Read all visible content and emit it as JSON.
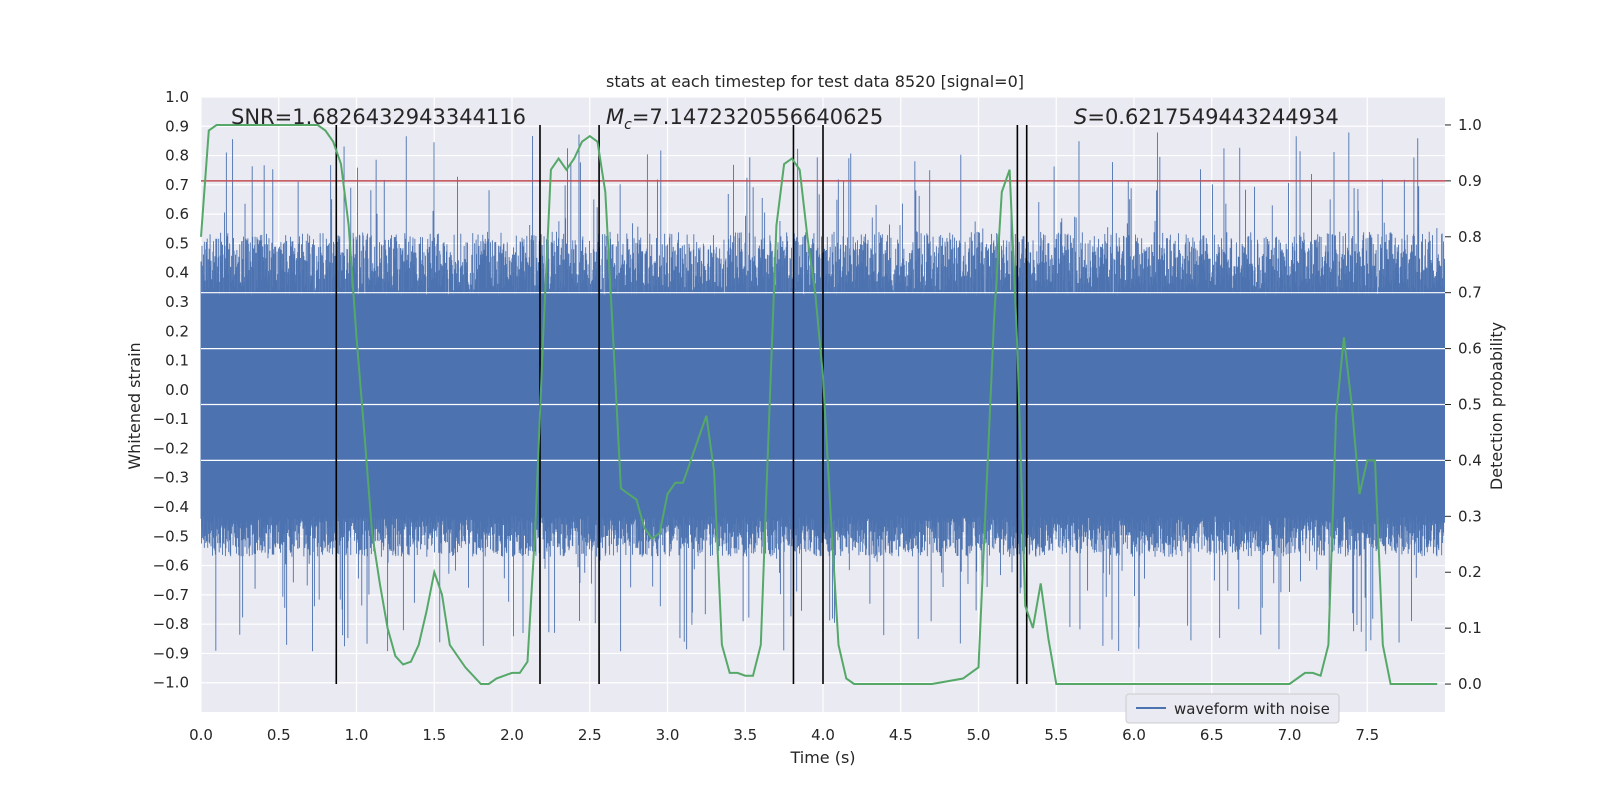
{
  "chart_data": {
    "type": "line",
    "title": "stats at each timestep for test data 8520 [signal=0]",
    "xlabel": "Time (s)",
    "ylabel": "Whitened strain",
    "ylabel_right": "Detection probability",
    "xlim": [
      0.0,
      8.0
    ],
    "ylim": [
      -1.1,
      1.0
    ],
    "ylim_right": [
      -0.05,
      1.05
    ],
    "x_ticks": [
      0.0,
      0.5,
      1.0,
      1.5,
      2.0,
      2.5,
      3.0,
      3.5,
      4.0,
      4.5,
      5.0,
      5.5,
      6.0,
      6.5,
      7.0,
      7.5
    ],
    "x_tick_labels": [
      "0.0",
      "0.5",
      "1.0",
      "1.5",
      "2.0",
      "2.5",
      "3.0",
      "3.5",
      "4.0",
      "4.5",
      "5.0",
      "5.5",
      "6.0",
      "6.5",
      "7.0",
      "7.5"
    ],
    "y_ticks": [
      1.0,
      0.9,
      0.8,
      0.7,
      0.6,
      0.5,
      0.4,
      0.3,
      0.2,
      0.1,
      0.0,
      -0.1,
      -0.2,
      -0.3,
      -0.4,
      -0.5,
      -0.6,
      -0.7,
      -0.8,
      -0.9,
      -1.0
    ],
    "y_tick_labels": [
      "1.0",
      "0.9",
      "0.8",
      "0.7",
      "0.6",
      "0.5",
      "0.4",
      "0.3",
      "0.2",
      "0.1",
      "0.0",
      "−0.1",
      "−0.2",
      "−0.3",
      "−0.4",
      "−0.5",
      "−0.6",
      "−0.7",
      "−0.8",
      "−0.9",
      "−1.0"
    ],
    "y_right_ticks": [
      1.0,
      0.9,
      0.8,
      0.7,
      0.6,
      0.5,
      0.4,
      0.3,
      0.2,
      0.1,
      0.0
    ],
    "y_right_tick_labels": [
      "1.0",
      "0.9",
      "0.8",
      "0.7",
      "0.6",
      "0.5",
      "0.4",
      "0.3",
      "0.2",
      "0.1",
      "0.0"
    ],
    "annotations": {
      "snr": "SNR=1.6826432943344116",
      "mc_symbol": "M",
      "mc_subscript": "c",
      "mc_value": "=7.1472320556640625",
      "s_symbol": "S",
      "s_value": "=0.6217549443244934"
    },
    "legend": {
      "label": "waveform with noise",
      "placement": "lower-right"
    },
    "threshold_line": {
      "value": 0.9,
      "axis": "right",
      "color": "#c44e52"
    },
    "detection_boundaries": [
      0.87,
      2.18,
      2.56,
      3.81,
      4.0,
      5.25,
      5.31
    ],
    "waveform": {
      "name": "waveform with noise",
      "color": "#4c72b0",
      "duration_s": 8.0,
      "core_envelope": [
        -0.43,
        0.32
      ],
      "spike_max": [
        0.88,
        -0.9
      ]
    },
    "detection_probability": {
      "name": "detection probability",
      "color": "#55a868",
      "x": [
        0.0,
        0.05,
        0.1,
        0.15,
        0.2,
        0.3,
        0.4,
        0.5,
        0.6,
        0.7,
        0.75,
        0.8,
        0.85,
        0.9,
        0.95,
        1.0,
        1.05,
        1.1,
        1.15,
        1.2,
        1.25,
        1.3,
        1.35,
        1.4,
        1.45,
        1.5,
        1.55,
        1.6,
        1.7,
        1.8,
        1.85,
        1.9,
        2.0,
        2.05,
        2.1,
        2.15,
        2.2,
        2.25,
        2.3,
        2.35,
        2.4,
        2.45,
        2.5,
        2.55,
        2.6,
        2.65,
        2.7,
        2.75,
        2.8,
        2.85,
        2.9,
        2.95,
        3.0,
        3.05,
        3.1,
        3.15,
        3.2,
        3.25,
        3.3,
        3.35,
        3.4,
        3.45,
        3.5,
        3.55,
        3.6,
        3.65,
        3.7,
        3.75,
        3.8,
        3.85,
        3.9,
        3.95,
        4.0,
        4.05,
        4.1,
        4.15,
        4.2,
        4.25,
        4.3,
        4.4,
        4.5,
        4.7,
        4.9,
        5.0,
        5.1,
        5.15,
        5.2,
        5.25,
        5.3,
        5.35,
        5.4,
        5.45,
        5.5,
        5.55,
        5.6,
        5.65,
        5.7,
        5.8,
        5.9,
        6.0,
        6.2,
        6.4,
        6.6,
        6.8,
        7.0,
        7.1,
        7.15,
        7.2,
        7.25,
        7.3,
        7.35,
        7.4,
        7.45,
        7.5,
        7.55,
        7.6,
        7.65,
        7.7,
        7.75,
        7.8,
        7.85,
        7.9,
        7.95
      ],
      "values": [
        0.8,
        0.99,
        1.0,
        1.0,
        1.0,
        1.0,
        1.0,
        1.0,
        1.0,
        1.0,
        1.0,
        0.99,
        0.97,
        0.93,
        0.82,
        0.62,
        0.45,
        0.27,
        0.18,
        0.1,
        0.05,
        0.035,
        0.04,
        0.07,
        0.13,
        0.2,
        0.16,
        0.07,
        0.03,
        0.0,
        0.0,
        0.01,
        0.02,
        0.02,
        0.04,
        0.28,
        0.62,
        0.92,
        0.94,
        0.92,
        0.94,
        0.97,
        0.98,
        0.97,
        0.88,
        0.62,
        0.35,
        0.34,
        0.33,
        0.28,
        0.26,
        0.27,
        0.34,
        0.36,
        0.36,
        0.4,
        0.44,
        0.48,
        0.38,
        0.07,
        0.02,
        0.02,
        0.015,
        0.015,
        0.07,
        0.45,
        0.82,
        0.93,
        0.94,
        0.92,
        0.8,
        0.7,
        0.55,
        0.3,
        0.07,
        0.01,
        0.0,
        0.0,
        0.0,
        0.0,
        0.0,
        0.0,
        0.01,
        0.03,
        0.65,
        0.88,
        0.92,
        0.6,
        0.14,
        0.1,
        0.18,
        0.08,
        0.0,
        0.0,
        0.0,
        0.0,
        0.0,
        0.0,
        0.0,
        0.0,
        0.0,
        0.0,
        0.0,
        0.0,
        0.0,
        0.02,
        0.02,
        0.015,
        0.07,
        0.48,
        0.62,
        0.5,
        0.34,
        0.4,
        0.4,
        0.07,
        0.0,
        0.0,
        0.0,
        0.0,
        0.0,
        0.0,
        0.0
      ]
    }
  }
}
